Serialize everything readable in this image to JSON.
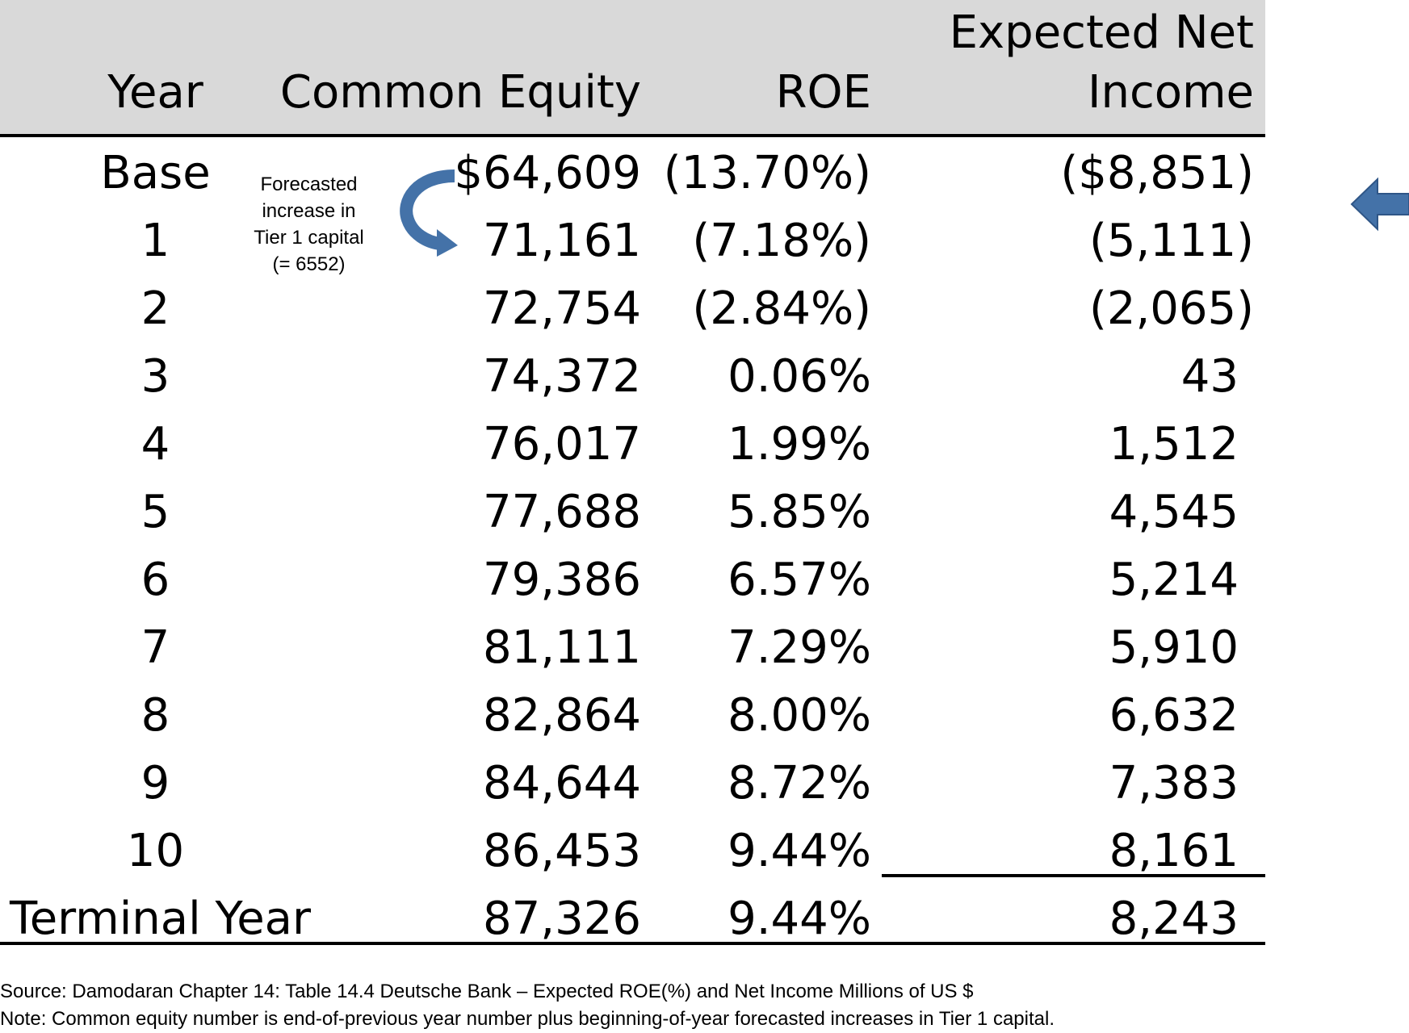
{
  "header": {
    "year": "Year",
    "common_equity": "Common Equity",
    "roe": "ROE",
    "net_income_line1": "Expected Net",
    "net_income_line2": "Income"
  },
  "rows": [
    {
      "year": "Base",
      "equity": "$64,609",
      "roe": "(13.70%)",
      "net_income": "($8,851)"
    },
    {
      "year": "1",
      "equity": "71,161",
      "roe": "(7.18%)",
      "net_income": "(5,111)"
    },
    {
      "year": "2",
      "equity": "72,754",
      "roe": "(2.84%)",
      "net_income": "(2,065)"
    },
    {
      "year": "3",
      "equity": "74,372",
      "roe": "0.06%",
      "net_income": "43"
    },
    {
      "year": "4",
      "equity": "76,017",
      "roe": "1.99%",
      "net_income": "1,512"
    },
    {
      "year": "5",
      "equity": "77,688",
      "roe": "5.85%",
      "net_income": "4,545"
    },
    {
      "year": "6",
      "equity": "79,386",
      "roe": "6.57%",
      "net_income": "5,214"
    },
    {
      "year": "7",
      "equity": "81,111",
      "roe": "7.29%",
      "net_income": "5,910"
    },
    {
      "year": "8",
      "equity": "82,864",
      "roe": "8.00%",
      "net_income": "6,632"
    },
    {
      "year": "9",
      "equity": "84,644",
      "roe": "8.72%",
      "net_income": "7,383"
    },
    {
      "year": "10",
      "equity": "86,453",
      "roe": "9.44%",
      "net_income": "8,161"
    }
  ],
  "terminal": {
    "year": "Terminal Year",
    "equity": "87,326",
    "roe": "9.44%",
    "net_income": "8,243"
  },
  "annotation": {
    "line1": "Forecasted",
    "line2": "increase in",
    "line3": "Tier 1 capital",
    "line4": "(= 6552)"
  },
  "icons": {
    "curve_arrow": "curved-arrow-icon",
    "side_arrow": "left-arrow-icon",
    "arrow_color": "#4472a8"
  },
  "footnotes": {
    "source": "Source: Damodaran Chapter 14: Table 14.4 Deutsche Bank – Expected ROE(%) and Net Income Millions of US $",
    "note": "Note: Common equity number is end-of-previous year number plus beginning-of-year forecasted increases in Tier 1 capital."
  }
}
